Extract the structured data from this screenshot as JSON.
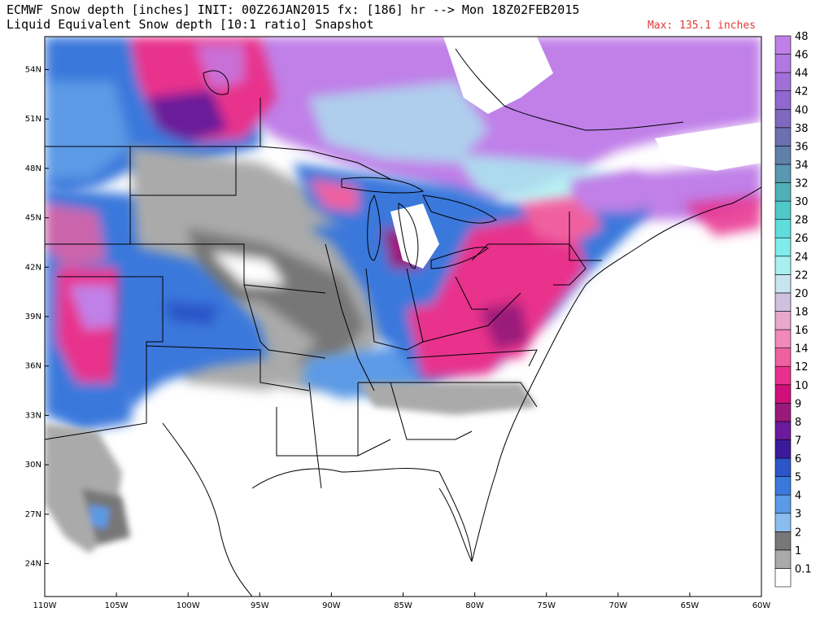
{
  "header": {
    "line1": "ECMWF Snow depth [inches] INIT: 00Z26JAN2015 fx: [186] hr --> Mon 18Z02FEB2015",
    "line2": "Liquid Equivalent Snow depth [10:1 ratio] Snapshot",
    "max_label": "Max: 135.1 inches"
  },
  "chart_data": {
    "type": "heatmap",
    "title": "ECMWF Snow depth [inches]",
    "x_ticks": [
      "110W",
      "105W",
      "100W",
      "95W",
      "90W",
      "85W",
      "80W",
      "75W",
      "70W",
      "65W",
      "60W"
    ],
    "y_ticks": [
      "54N",
      "51N",
      "48N",
      "45N",
      "42N",
      "39N",
      "36N",
      "33N",
      "30N",
      "27N",
      "24N"
    ],
    "xlim": [
      -110,
      -60
    ],
    "ylim": [
      22,
      56
    ],
    "colorbar": {
      "levels": [
        "0.1",
        "1",
        "2",
        "3",
        "4",
        "5",
        "6",
        "7",
        "8",
        "9",
        "10",
        "12",
        "14",
        "16",
        "18",
        "20",
        "22",
        "24",
        "26",
        "28",
        "30",
        "32",
        "34",
        "36",
        "38",
        "40",
        "42",
        "44",
        "46",
        "48"
      ],
      "colors": [
        "#ffffff",
        "#aaaaaa",
        "#777777",
        "#8bbcf0",
        "#5b9ae6",
        "#3a78dc",
        "#2c55c8",
        "#3a1a9a",
        "#6a1a9a",
        "#9a1a7a",
        "#d0107a",
        "#e8308c",
        "#f060a0",
        "#f088b8",
        "#e8a8cc",
        "#d0c0e0",
        "#c8e4ee",
        "#a8f0f0",
        "#80ecec",
        "#60dcdc",
        "#50c8c8",
        "#50b0b8",
        "#5898b0",
        "#6080a8",
        "#6a70b0",
        "#8068c0",
        "#9068d0",
        "#a070d8",
        "#b078e0",
        "#c080e8"
      ]
    }
  }
}
